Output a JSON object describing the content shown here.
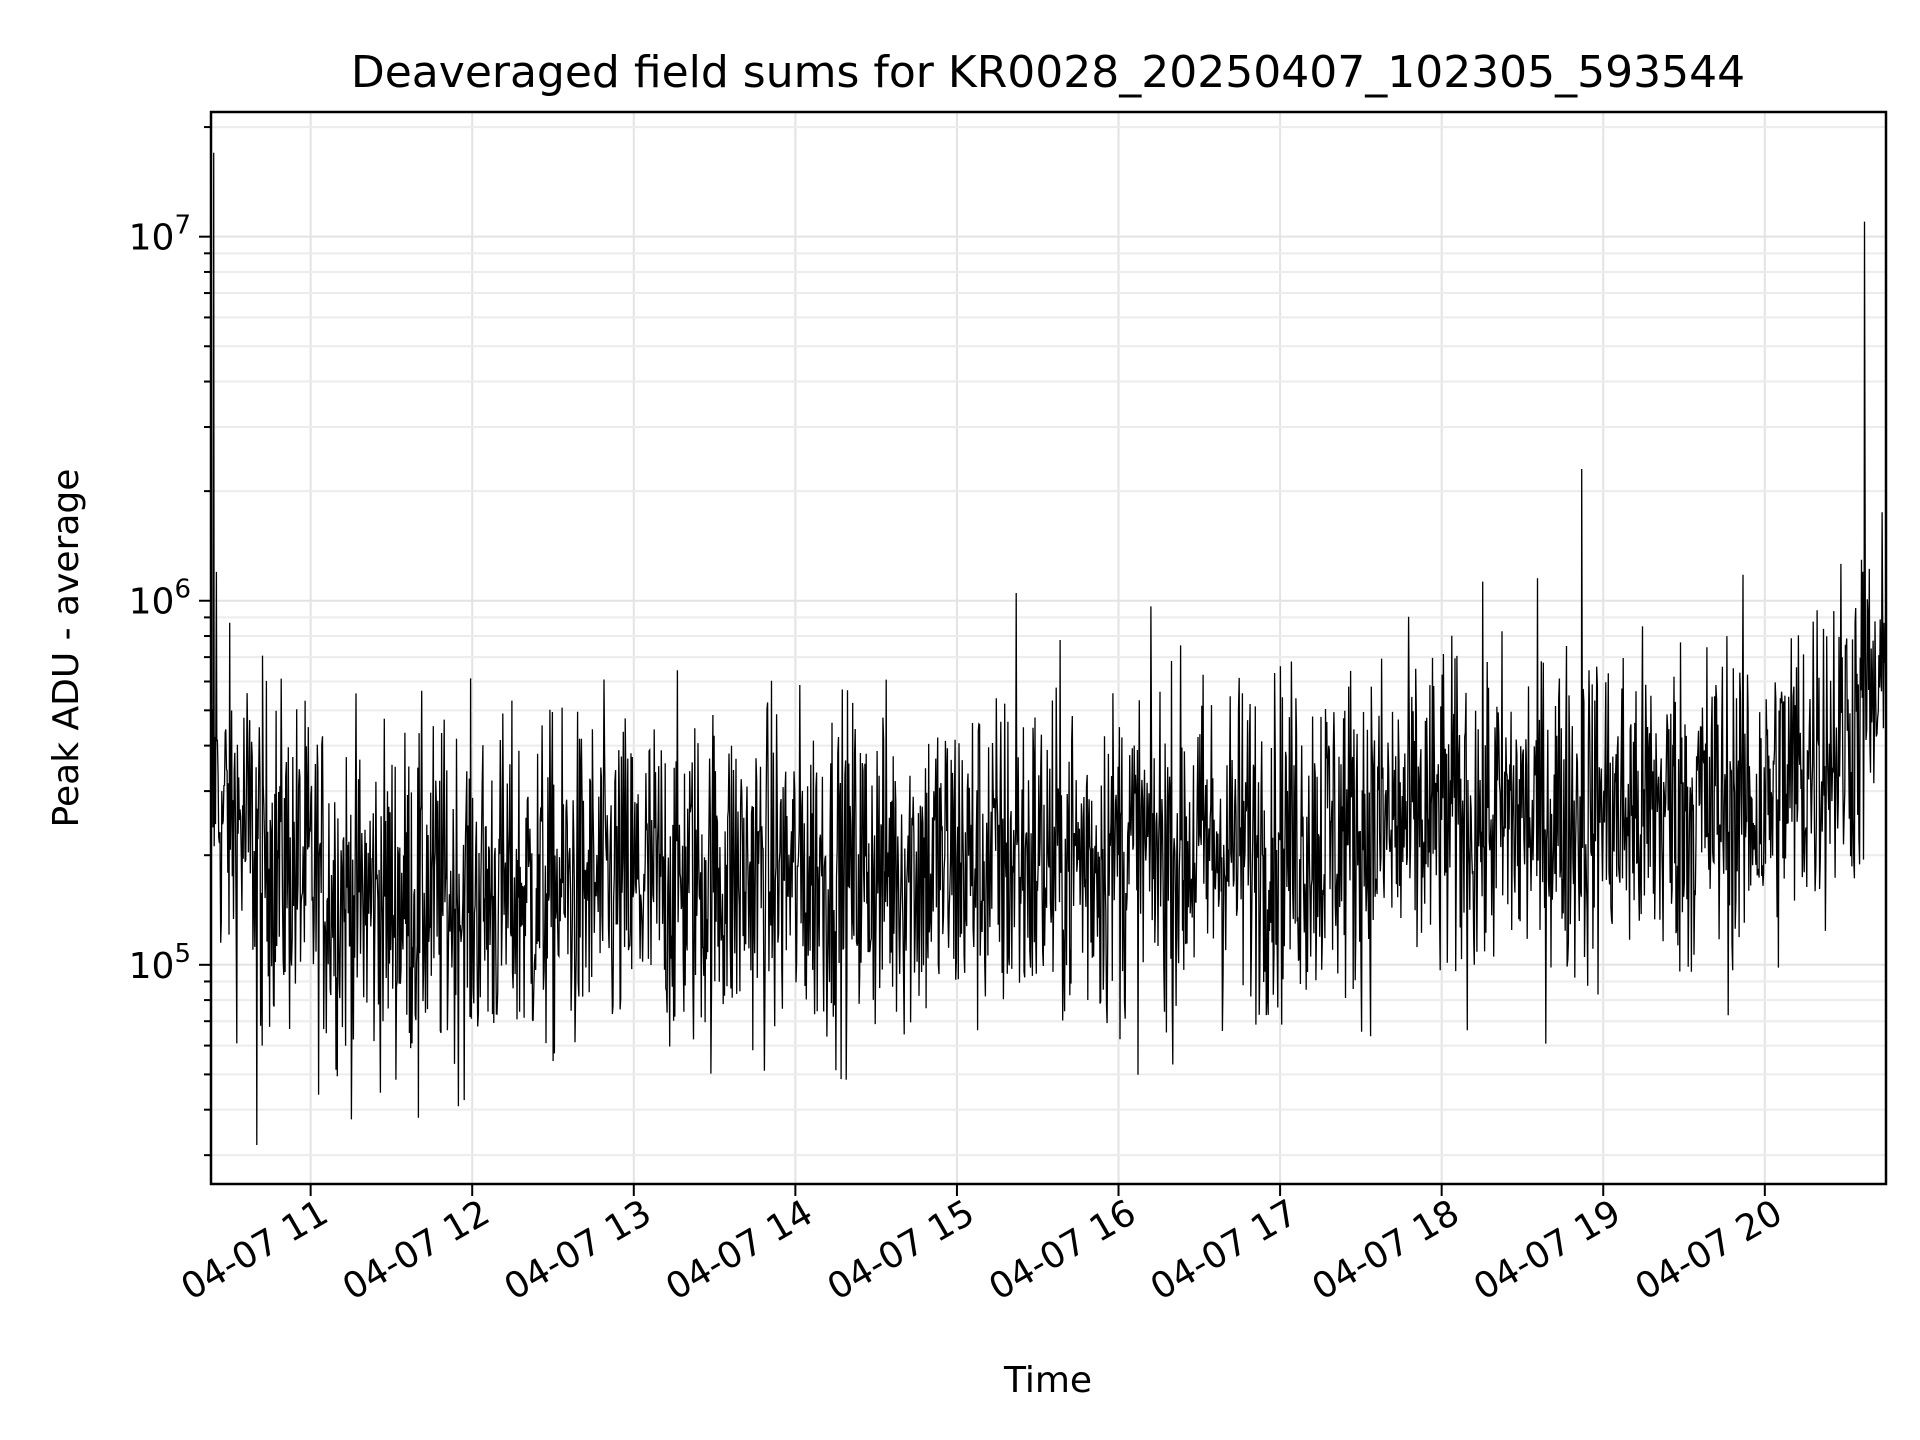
{
  "chart_data": {
    "type": "line",
    "title": "Deaveraged field sums for KR0028_20250407_102305_593544",
    "xlabel": "Time",
    "ylabel": "Peak ADU - average",
    "y_scale": "log",
    "xlim": [
      "2025-04-07 10:23",
      "2025-04-07 20:45"
    ],
    "ylim": [
      25000,
      22000000
    ],
    "grid": true,
    "x_tick_labels": [
      "04-07 11",
      "04-07 12",
      "04-07 13",
      "04-07 14",
      "04-07 15",
      "04-07 16",
      "04-07 17",
      "04-07 18",
      "04-07 19",
      "04-07 20"
    ],
    "x_tick_rotation_deg": 30,
    "y_tick_values": [
      100000,
      1000000,
      10000000
    ],
    "y_tick_labels": [
      {
        "base": "10",
        "exp": "5"
      },
      {
        "base": "10",
        "exp": "6"
      },
      {
        "base": "10",
        "exp": "7"
      }
    ],
    "series": [
      {
        "color": "#000000",
        "x": [
          "2025-04-07 10:23",
          "2025-04-07 10:24",
          "2025-04-07 10:25",
          "2025-04-07 10:27",
          "2025-04-07 10:40",
          "2025-04-07 10:42",
          "2025-04-07 10:45",
          "2025-04-07 11:30",
          "2025-04-07 11:40",
          "2025-04-07 12:00",
          "2025-04-07 13:00",
          "2025-04-07 14:00",
          "2025-04-07 15:00",
          "2025-04-07 15:22",
          "2025-04-07 16:00",
          "2025-04-07 17:00",
          "2025-04-07 18:00",
          "2025-04-07 18:52",
          "2025-04-07 19:00",
          "2025-04-07 20:00",
          "2025-04-07 20:20",
          "2025-04-07 20:37",
          "2025-04-07 20:45"
        ],
        "y": [
          400000,
          17000000,
          1200000,
          300000,
          32000,
          60000,
          250000,
          140000,
          38000,
          150000,
          160000,
          175000,
          195000,
          1050000,
          200000,
          220000,
          250000,
          2300000,
          260000,
          280000,
          400000,
          11000000,
          560000
        ]
      }
    ],
    "noise": {
      "samples": 2600,
      "baseline": [
        [
          "2025-04-07 10:23",
          290000
        ],
        [
          "2025-04-07 10:45",
          200000
        ],
        [
          "2025-04-07 11:15",
          150000
        ],
        [
          "2025-04-07 12:30",
          160000
        ],
        [
          "2025-04-07 14:00",
          180000
        ],
        [
          "2025-04-07 16:00",
          200000
        ],
        [
          "2025-04-07 17:00",
          220000
        ],
        [
          "2025-04-07 18:00",
          250000
        ],
        [
          "2025-04-07 19:00",
          260000
        ],
        [
          "2025-04-07 20:00",
          280000
        ],
        [
          "2025-04-07 20:20",
          380000
        ],
        [
          "2025-04-07 20:45",
          560000
        ]
      ],
      "spread_decades": 0.55
    }
  }
}
